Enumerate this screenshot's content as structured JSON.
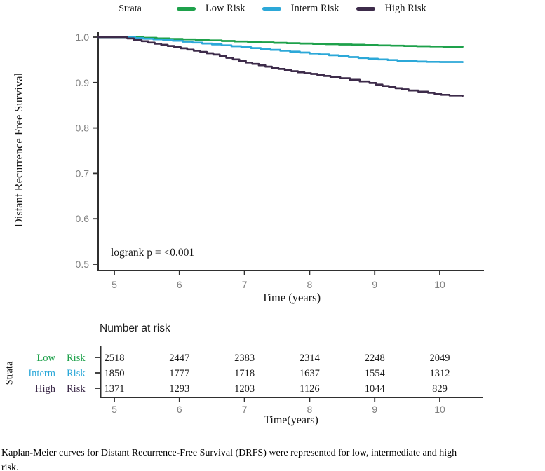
{
  "legend": {
    "title": "Strata",
    "items": [
      {
        "label": "Low Risk",
        "color": "#1ea14b"
      },
      {
        "label": "Interm Risk",
        "color": "#2ca8d8"
      },
      {
        "label": "High Risk",
        "color": "#3d2b4a"
      }
    ]
  },
  "chart_data": {
    "type": "line",
    "subtype": "kaplan-meier-step",
    "ylabel": "Distant Recurrence Free Survival",
    "xlabel": "Time (years)",
    "annotation": "logrank p = <0.001",
    "x_ticks": [
      5,
      6,
      7,
      8,
      9,
      10
    ],
    "y_ticks": [
      1.0,
      0.9,
      0.8,
      0.7,
      0.6,
      0.5
    ],
    "xlim": [
      4.75,
      10.4
    ],
    "ylim": [
      0.5,
      1.0
    ],
    "grid": false,
    "legend_position": "top",
    "axis_color": "#2f2f2f",
    "tick_label_color": "#808080",
    "series": [
      {
        "name": "Low Risk",
        "color": "#1ea14b",
        "points": [
          [
            4.75,
            1
          ],
          [
            5.3,
            1
          ],
          [
            5.45,
            0.9985
          ],
          [
            5.65,
            0.997
          ],
          [
            5.85,
            0.996
          ],
          [
            6.05,
            0.995
          ],
          [
            6.25,
            0.994
          ],
          [
            6.45,
            0.9928
          ],
          [
            6.65,
            0.9915
          ],
          [
            6.85,
            0.9905
          ],
          [
            7.05,
            0.9895
          ],
          [
            7.25,
            0.9885
          ],
          [
            7.45,
            0.9875
          ],
          [
            7.65,
            0.9868
          ],
          [
            7.85,
            0.986
          ],
          [
            8.05,
            0.9852
          ],
          [
            8.25,
            0.9845
          ],
          [
            8.45,
            0.9838
          ],
          [
            8.65,
            0.9832
          ],
          [
            8.85,
            0.9825
          ],
          [
            9.05,
            0.9818
          ],
          [
            9.25,
            0.9812
          ],
          [
            9.45,
            0.9806
          ],
          [
            9.65,
            0.98
          ],
          [
            9.85,
            0.9795
          ],
          [
            10.05,
            0.979
          ],
          [
            10.35,
            0.9788
          ]
        ]
      },
      {
        "name": "Interm Risk",
        "color": "#2ca8d8",
        "points": [
          [
            4.75,
            1
          ],
          [
            5.2,
            1
          ],
          [
            5.32,
            0.998
          ],
          [
            5.45,
            0.9965
          ],
          [
            5.6,
            0.995
          ],
          [
            5.75,
            0.9935
          ],
          [
            5.9,
            0.992
          ],
          [
            6.05,
            0.99
          ],
          [
            6.2,
            0.988
          ],
          [
            6.35,
            0.986
          ],
          [
            6.5,
            0.984
          ],
          [
            6.65,
            0.982
          ],
          [
            6.8,
            0.98
          ],
          [
            6.95,
            0.978
          ],
          [
            7.1,
            0.976
          ],
          [
            7.25,
            0.974
          ],
          [
            7.4,
            0.972
          ],
          [
            7.55,
            0.97
          ],
          [
            7.7,
            0.968
          ],
          [
            7.85,
            0.966
          ],
          [
            8.0,
            0.964
          ],
          [
            8.15,
            0.962
          ],
          [
            8.3,
            0.96
          ],
          [
            8.45,
            0.958
          ],
          [
            8.6,
            0.956
          ],
          [
            8.75,
            0.954
          ],
          [
            8.9,
            0.9525
          ],
          [
            9.05,
            0.951
          ],
          [
            9.2,
            0.9495
          ],
          [
            9.35,
            0.948
          ],
          [
            9.5,
            0.947
          ],
          [
            9.65,
            0.9462
          ],
          [
            9.8,
            0.9456
          ],
          [
            10.0,
            0.9452
          ],
          [
            10.35,
            0.945
          ]
        ]
      },
      {
        "name": "High Risk",
        "color": "#3d2b4a",
        "points": [
          [
            4.75,
            1
          ],
          [
            5.12,
            1
          ],
          [
            5.2,
            0.997
          ],
          [
            5.3,
            0.994
          ],
          [
            5.42,
            0.991
          ],
          [
            5.52,
            0.988
          ],
          [
            5.62,
            0.9855
          ],
          [
            5.72,
            0.983
          ],
          [
            5.82,
            0.9805
          ],
          [
            5.92,
            0.978
          ],
          [
            6.02,
            0.9755
          ],
          [
            6.12,
            0.9725
          ],
          [
            6.22,
            0.97
          ],
          [
            6.32,
            0.9675
          ],
          [
            6.42,
            0.9645
          ],
          [
            6.52,
            0.9615
          ],
          [
            6.62,
            0.958
          ],
          [
            6.72,
            0.9545
          ],
          [
            6.82,
            0.951
          ],
          [
            6.92,
            0.9475
          ],
          [
            7.02,
            0.944
          ],
          [
            7.12,
            0.941
          ],
          [
            7.22,
            0.938
          ],
          [
            7.32,
            0.935
          ],
          [
            7.42,
            0.9325
          ],
          [
            7.52,
            0.93
          ],
          [
            7.62,
            0.9275
          ],
          [
            7.72,
            0.925
          ],
          [
            7.82,
            0.9225
          ],
          [
            7.92,
            0.9205
          ],
          [
            8.02,
            0.919
          ],
          [
            8.12,
            0.9165
          ],
          [
            8.22,
            0.9145
          ],
          [
            8.32,
            0.9125
          ],
          [
            8.47,
            0.9095
          ],
          [
            8.62,
            0.906
          ],
          [
            8.77,
            0.9025
          ],
          [
            8.92,
            0.899
          ],
          [
            9.02,
            0.8955
          ],
          [
            9.12,
            0.8925
          ],
          [
            9.22,
            0.89
          ],
          [
            9.32,
            0.8875
          ],
          [
            9.42,
            0.885
          ],
          [
            9.52,
            0.8825
          ],
          [
            9.67,
            0.88
          ],
          [
            9.82,
            0.8775
          ],
          [
            9.92,
            0.875
          ],
          [
            10.02,
            0.873
          ],
          [
            10.15,
            0.8715
          ],
          [
            10.35,
            0.8705
          ]
        ]
      }
    ]
  },
  "risk_table": {
    "title": "Number at risk",
    "axis_label": "Strata",
    "xlabel": "Time(years)",
    "times": [
      5,
      6,
      7,
      8,
      9,
      10
    ],
    "rows": [
      {
        "group": "Low",
        "suffix": "Risk",
        "color": "#1ea14b",
        "values": [
          2518,
          2447,
          2383,
          2314,
          2248,
          2049
        ]
      },
      {
        "group": "Interm",
        "suffix": "Risk",
        "color": "#2ca8d8",
        "values": [
          1850,
          1777,
          1718,
          1637,
          1554,
          1312
        ]
      },
      {
        "group": "High",
        "suffix": "Risk",
        "color": "#3d2b4a",
        "values": [
          1371,
          1293,
          1203,
          1126,
          1044,
          829
        ]
      }
    ]
  },
  "caption": {
    "line1": "Kaplan-Meier curves for Distant Recurrence-Free Survival (DRFS) were represented for low, intermediate and high",
    "line2": "risk."
  }
}
